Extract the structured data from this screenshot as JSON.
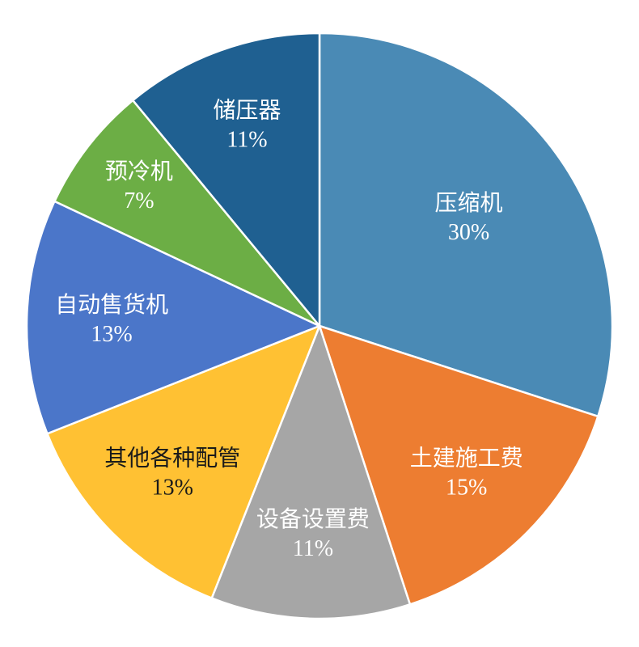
{
  "chart_data": {
    "type": "pie",
    "title": "",
    "categories": [
      "压缩机",
      "土建施工费",
      "设备设置费",
      "其他各种配管",
      "自动售货机",
      "预冷机",
      "储压器"
    ],
    "values": [
      30,
      15,
      11,
      13,
      13,
      7,
      11
    ],
    "value_labels": [
      "30%",
      "15%",
      "11%",
      "13%",
      "13%",
      "7%",
      "11%"
    ],
    "colors": [
      "#4A8AB5",
      "#ED7D31",
      "#A6A6A6",
      "#FFC133",
      "#4B76C9",
      "#6CAE45",
      "#1F6091"
    ],
    "label_colors": [
      "#FFFFFF",
      "#FFFFFF",
      "#FFFFFF",
      "#1A1A1A",
      "#FFFFFF",
      "#FFFFFF",
      "#FFFFFF"
    ],
    "label_radius_fraction": [
      0.63,
      0.71,
      0.71,
      0.71,
      0.71,
      0.78,
      0.73
    ],
    "start_angle_deg": 0,
    "direction": "clockwise",
    "legend": "none",
    "grid": false,
    "background": "#FFFFFF",
    "slice_border_color": "#FFFFFF"
  }
}
